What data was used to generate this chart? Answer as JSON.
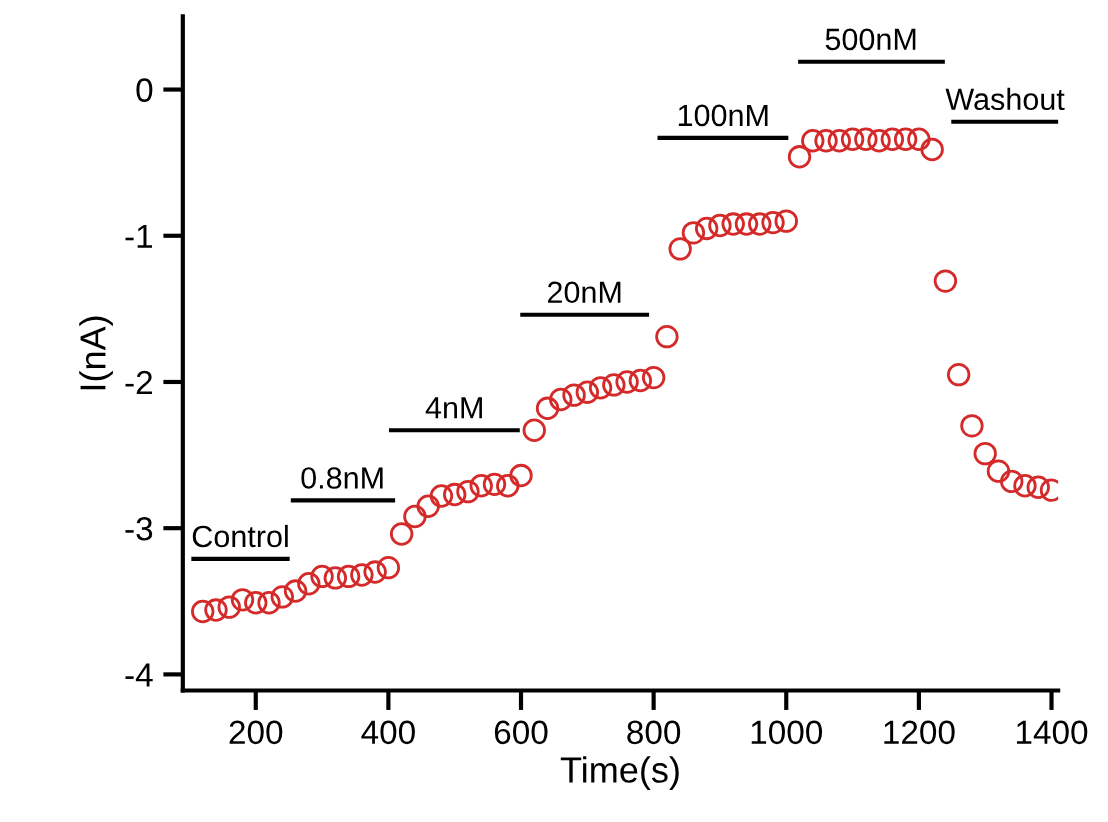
{
  "chart_data": {
    "type": "scatter",
    "xlabel": "Time(s)",
    "ylabel": "I(nA)",
    "xlim": [
      90,
      1410
    ],
    "xticks": [
      200,
      400,
      600,
      800,
      1000,
      1200,
      1400
    ],
    "ylim": [
      -4.11,
      0.5
    ],
    "yticks": [
      {
        "value": 0,
        "label": "0"
      },
      {
        "value": -1,
        "label": "-1"
      },
      {
        "value": -2,
        "label": "-2"
      },
      {
        "value": -3,
        "label": "-3"
      },
      {
        "value": -4,
        "label": "-4"
      }
    ],
    "grid": false,
    "legend": false,
    "series": [
      {
        "marker": "circle",
        "color": "#d42a2a",
        "x": [
          120,
          140,
          160,
          180,
          200,
          220,
          240,
          260,
          280,
          300,
          320,
          340,
          360,
          380,
          400,
          420,
          440,
          460,
          480,
          500,
          520,
          540,
          560,
          580,
          600,
          620,
          640,
          660,
          680,
          700,
          720,
          740,
          760,
          780,
          800,
          820,
          840,
          860,
          880,
          900,
          920,
          940,
          960,
          980,
          1000,
          1020,
          1040,
          1060,
          1080,
          1100,
          1120,
          1140,
          1160,
          1180,
          1200,
          1220,
          1240,
          1260,
          1280,
          1300,
          1320,
          1340,
          1360,
          1380,
          1400
        ],
        "values": [
          -3.57,
          -3.56,
          -3.54,
          -3.49,
          -3.51,
          -3.51,
          -3.47,
          -3.43,
          -3.38,
          -3.33,
          -3.34,
          -3.33,
          -3.32,
          -3.3,
          -3.27,
          -3.04,
          -2.92,
          -2.85,
          -2.78,
          -2.77,
          -2.75,
          -2.71,
          -2.7,
          -2.71,
          -2.64,
          -2.33,
          -2.18,
          -2.12,
          -2.09,
          -2.07,
          -2.04,
          -2.02,
          -2.0,
          -1.99,
          -1.97,
          -1.69,
          -1.09,
          -0.98,
          -0.95,
          -0.93,
          -0.92,
          -0.92,
          -0.92,
          -0.91,
          -0.9,
          -0.46,
          -0.35,
          -0.35,
          -0.35,
          -0.34,
          -0.34,
          -0.35,
          -0.34,
          -0.34,
          -0.34,
          -0.41,
          -1.31,
          -1.95,
          -2.3,
          -2.49,
          -2.61,
          -2.68,
          -2.71,
          -2.72,
          -2.74
        ]
      },
      {
        "type": "line",
        "color": "#000000",
        "x": [
          106,
          248
        ],
        "values": [
          -3.21,
          -3.21
        ]
      },
      {
        "type": "line",
        "color": "#000000",
        "x": [
          256,
          407
        ],
        "values": [
          -2.81,
          -2.81
        ]
      },
      {
        "type": "line",
        "color": "#000000",
        "x": [
          404,
          595
        ],
        "values": [
          -2.33,
          -2.33
        ]
      },
      {
        "type": "line",
        "color": "#000000",
        "x": [
          602,
          790
        ],
        "values": [
          -1.54,
          -1.54
        ]
      },
      {
        "type": "line",
        "color": "#000000",
        "x": [
          809,
          1000
        ],
        "values": [
          -0.33,
          -0.33
        ]
      },
      {
        "type": "line",
        "color": "#000000",
        "x": [
          1021,
          1236
        ],
        "values": [
          0.19,
          0.19
        ]
      },
      {
        "type": "line",
        "color": "#000000",
        "x": [
          1252,
          1408
        ],
        "values": [
          -0.22,
          -0.22
        ]
      }
    ],
    "annotations": [
      {
        "text": "Control",
        "x": 177,
        "y": -3.21
      },
      {
        "text": "0.8nM",
        "x": 331,
        "y": -2.81
      },
      {
        "text": "4nM",
        "x": 500,
        "y": -2.33
      },
      {
        "text": "20nM",
        "x": 696,
        "y": -1.54
      },
      {
        "text": "100nM",
        "x": 905,
        "y": -0.33
      },
      {
        "text": "500nM",
        "x": 1128,
        "y": 0.19
      },
      {
        "text": "Washout",
        "x": 1330,
        "y": -0.22
      }
    ]
  }
}
